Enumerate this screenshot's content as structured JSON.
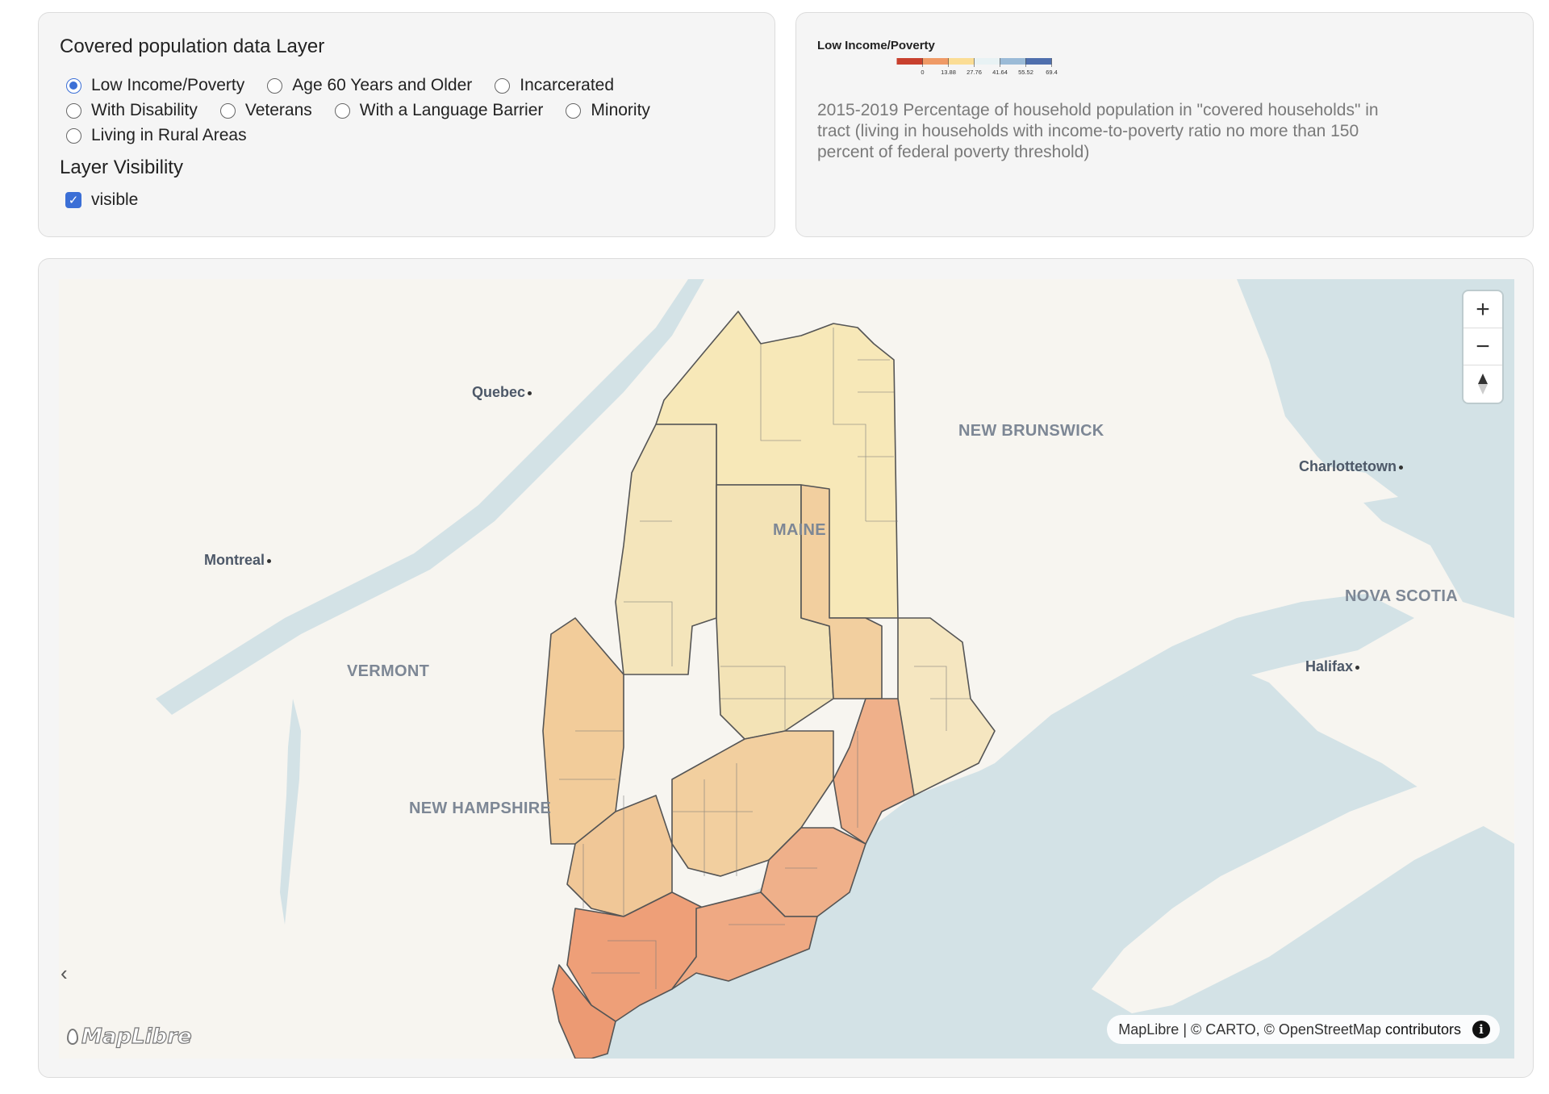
{
  "controls": {
    "layer_title": "Covered population data Layer",
    "layer_options": [
      {
        "label": "Low Income/Poverty",
        "checked": true
      },
      {
        "label": "Age 60 Years and Older",
        "checked": false
      },
      {
        "label": "Incarcerated",
        "checked": false
      },
      {
        "label": "With Disability",
        "checked": false
      },
      {
        "label": "Veterans",
        "checked": false
      },
      {
        "label": "With a Language Barrier",
        "checked": false
      },
      {
        "label": "Minority",
        "checked": false
      },
      {
        "label": "Living in Rural Areas",
        "checked": false
      }
    ],
    "visibility_title": "Layer Visibility",
    "visible_label": "visible",
    "visible_checked": true
  },
  "legend": {
    "title": "Low Income/Poverty",
    "colors": [
      "#c8402e",
      "#ef9a66",
      "#fbdd95",
      "#e8f2f4",
      "#9bbbd7",
      "#4f6fad"
    ],
    "ticks": [
      "0",
      "13.88",
      "27.76",
      "41.64",
      "55.52",
      "69.4"
    ],
    "description": "2015-2019 Percentage of household population in \"covered households\" in tract (living in households with income-to-poverty ratio no more than 150 percent of federal poverty threshold)"
  },
  "map": {
    "region_labels": [
      "NEW BRUNSWICK",
      "MAINE",
      "VERMONT",
      "NEW HAMPSHIRE",
      "NOVA SCOTIA"
    ],
    "city_labels": [
      "Quebec",
      "Montreal",
      "Charlottetown",
      "Halifax"
    ],
    "zoom_in_icon": "plus-icon",
    "zoom_out_icon": "minus-icon",
    "compass_icon": "compass-icon",
    "attribution": {
      "maplibre": "MapLibre",
      "separator": " | ",
      "carto": "© CARTO, © OpenStreetMap",
      "contributors": " contributors"
    },
    "logo_text": "MapLibre",
    "collapse_icon": "chevron-left-icon",
    "colors": {
      "land": "#f7f5f0",
      "water": "#d3e2e6",
      "north": "#f7e8b8",
      "central": "#f4e2b6",
      "mid": "#f2cf9f",
      "south": "#ee9f78"
    }
  }
}
